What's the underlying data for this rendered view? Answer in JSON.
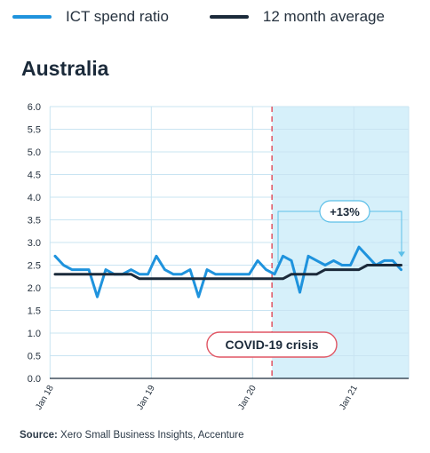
{
  "legend": [
    {
      "label": "ICT spend ratio",
      "color": "#1f93dd"
    },
    {
      "label": "12 month average",
      "color": "#1b2a3a"
    }
  ],
  "title": "Australia",
  "source": {
    "prefix": "Source:",
    "text": "Xero Small Business Insights, Accenture"
  },
  "chart_data": {
    "type": "line",
    "title": "Australia",
    "x_tick_labels": [
      "Jan 18",
      "Jan 19",
      "Jan 20",
      "Jan 21"
    ],
    "x_tick_month_index": [
      0,
      12,
      24,
      36
    ],
    "y_ticks": [
      0.0,
      0.5,
      1.0,
      1.5,
      2.0,
      2.5,
      3.0,
      3.5,
      4.0,
      4.5,
      5.0,
      5.5,
      6.0
    ],
    "ylim": [
      0,
      6
    ],
    "grid": true,
    "legend_position": "top",
    "series": [
      {
        "name": "ICT spend ratio",
        "color": "#1f93dd",
        "values": [
          2.7,
          2.5,
          2.4,
          2.4,
          2.4,
          1.8,
          2.4,
          2.3,
          2.3,
          2.4,
          2.3,
          2.3,
          2.7,
          2.4,
          2.3,
          2.3,
          2.4,
          1.8,
          2.4,
          2.3,
          2.3,
          2.3,
          2.3,
          2.3,
          2.6,
          2.4,
          2.3,
          2.7,
          2.6,
          1.9,
          2.7,
          2.6,
          2.5,
          2.6,
          2.5,
          2.5,
          2.9,
          2.7,
          2.5,
          2.6,
          2.6,
          2.4
        ]
      },
      {
        "name": "12 month average",
        "color": "#1b2a3a",
        "values": [
          2.3,
          2.3,
          2.3,
          2.3,
          2.3,
          2.3,
          2.3,
          2.3,
          2.3,
          2.3,
          2.2,
          2.2,
          2.2,
          2.2,
          2.2,
          2.2,
          2.2,
          2.2,
          2.2,
          2.2,
          2.2,
          2.2,
          2.2,
          2.2,
          2.2,
          2.2,
          2.2,
          2.2,
          2.3,
          2.3,
          2.3,
          2.3,
          2.4,
          2.4,
          2.4,
          2.4,
          2.4,
          2.5,
          2.5,
          2.5,
          2.5,
          2.5
        ]
      }
    ],
    "covid_period": {
      "start_month_index": 26,
      "end_month_index": 42,
      "shade_color": "#d6f0fa",
      "line_color": "#e05563"
    },
    "annotations": {
      "covid_label": "COVID-19 crisis",
      "change_label": "+13%"
    }
  }
}
